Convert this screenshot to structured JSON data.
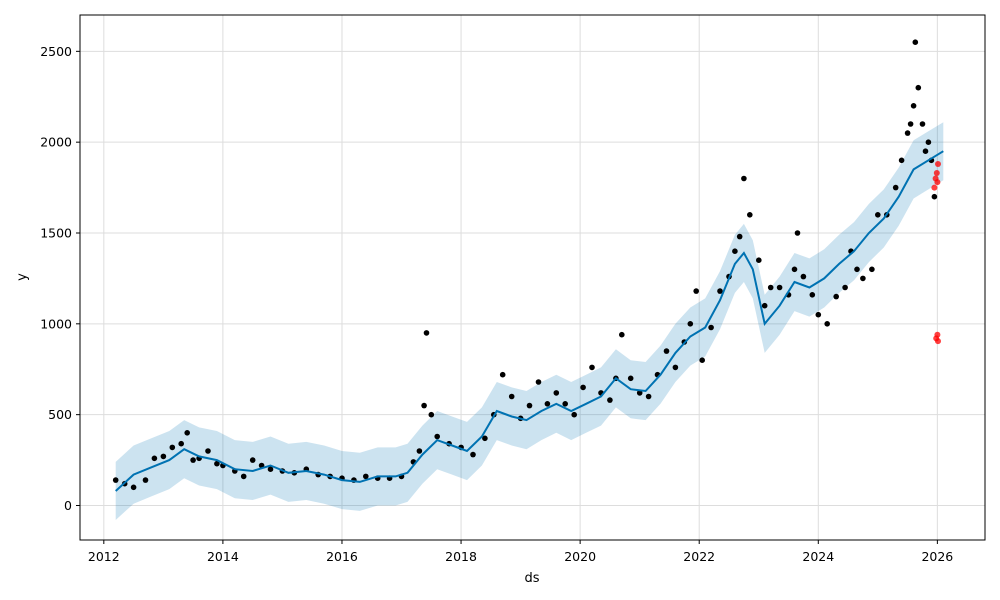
{
  "chart_data": {
    "type": "line",
    "xlabel": "ds",
    "ylabel": "y",
    "xlim": [
      2011.6,
      2026.8
    ],
    "ylim": [
      -190,
      2700
    ],
    "grid": true,
    "x_ticks": [
      "2012",
      "2014",
      "2016",
      "2018",
      "2020",
      "2022",
      "2024",
      "2026"
    ],
    "y_ticks": [
      "0",
      "500",
      "1000",
      "1500",
      "2000",
      "2500"
    ],
    "colors": {
      "forecast": "#0072B2",
      "interval": "#0072B2",
      "observed": "#000000",
      "test": "#ff0000",
      "grid": "#dddddd"
    },
    "series": [
      {
        "role": "forecast_line",
        "x": [
          2012.2,
          2012.5,
          2012.8,
          2013.1,
          2013.35,
          2013.6,
          2013.9,
          2014.2,
          2014.5,
          2014.8,
          2015.1,
          2015.4,
          2015.7,
          2016.0,
          2016.3,
          2016.6,
          2016.9,
          2017.1,
          2017.35,
          2017.6,
          2017.85,
          2018.1,
          2018.35,
          2018.6,
          2018.85,
          2019.1,
          2019.35,
          2019.6,
          2019.85,
          2020.1,
          2020.35,
          2020.6,
          2020.85,
          2021.1,
          2021.35,
          2021.6,
          2021.85,
          2022.1,
          2022.35,
          2022.6,
          2022.75,
          2022.9,
          2023.1,
          2023.35,
          2023.6,
          2023.85,
          2024.1,
          2024.35,
          2024.6,
          2024.85,
          2025.1,
          2025.35,
          2025.6,
          2025.85,
          2026.1
        ],
        "y": [
          80,
          170,
          210,
          250,
          310,
          270,
          250,
          200,
          190,
          220,
          180,
          190,
          170,
          140,
          130,
          160,
          160,
          180,
          280,
          360,
          330,
          300,
          380,
          520,
          490,
          470,
          520,
          560,
          520,
          560,
          600,
          700,
          640,
          630,
          720,
          840,
          930,
          980,
          1130,
          1330,
          1390,
          1300,
          1000,
          1100,
          1230,
          1200,
          1250,
          1330,
          1400,
          1500,
          1580,
          1700,
          1850,
          1900,
          1950
        ]
      },
      {
        "role": "uncertainty_interval",
        "x": [
          2012.2,
          2012.5,
          2012.8,
          2013.1,
          2013.35,
          2013.6,
          2013.9,
          2014.2,
          2014.5,
          2014.8,
          2015.1,
          2015.4,
          2015.7,
          2016.0,
          2016.3,
          2016.6,
          2016.9,
          2017.1,
          2017.35,
          2017.6,
          2017.85,
          2018.1,
          2018.35,
          2018.6,
          2018.85,
          2019.1,
          2019.35,
          2019.6,
          2019.85,
          2020.1,
          2020.35,
          2020.6,
          2020.85,
          2021.1,
          2021.35,
          2021.6,
          2021.85,
          2022.1,
          2022.35,
          2022.6,
          2022.75,
          2022.9,
          2023.1,
          2023.35,
          2023.6,
          2023.85,
          2024.1,
          2024.35,
          2024.6,
          2024.85,
          2025.1,
          2025.35,
          2025.6,
          2025.85,
          2026.1
        ],
        "lower": [
          -80,
          10,
          50,
          90,
          150,
          110,
          90,
          40,
          30,
          60,
          20,
          30,
          10,
          -20,
          -30,
          0,
          0,
          20,
          120,
          200,
          170,
          140,
          220,
          360,
          330,
          310,
          360,
          400,
          360,
          400,
          440,
          540,
          480,
          470,
          560,
          680,
          770,
          820,
          970,
          1170,
          1230,
          1140,
          840,
          940,
          1070,
          1040,
          1090,
          1170,
          1240,
          1340,
          1420,
          1540,
          1690,
          1740,
          1790
        ],
        "upper": [
          240,
          330,
          370,
          410,
          470,
          430,
          410,
          360,
          350,
          380,
          340,
          350,
          330,
          300,
          290,
          320,
          320,
          340,
          440,
          520,
          490,
          460,
          540,
          680,
          650,
          630,
          680,
          720,
          680,
          720,
          760,
          860,
          800,
          790,
          880,
          1000,
          1090,
          1140,
          1290,
          1490,
          1550,
          1460,
          1160,
          1260,
          1390,
          1360,
          1410,
          1490,
          1560,
          1660,
          1740,
          1860,
          2010,
          2060,
          2110
        ]
      },
      {
        "role": "observed_points",
        "x": [
          2012.2,
          2012.35,
          2012.5,
          2012.7,
          2012.85,
          2013.0,
          2013.15,
          2013.3,
          2013.4,
          2013.5,
          2013.6,
          2013.75,
          2013.9,
          2014.0,
          2014.2,
          2014.35,
          2014.5,
          2014.65,
          2014.8,
          2015.0,
          2015.2,
          2015.4,
          2015.6,
          2015.8,
          2016.0,
          2016.2,
          2016.4,
          2016.6,
          2016.8,
          2017.0,
          2017.2,
          2017.3,
          2017.38,
          2017.42,
          2017.5,
          2017.6,
          2017.8,
          2018.0,
          2018.2,
          2018.4,
          2018.55,
          2018.7,
          2018.85,
          2019.0,
          2019.15,
          2019.3,
          2019.45,
          2019.6,
          2019.75,
          2019.9,
          2020.05,
          2020.2,
          2020.35,
          2020.5,
          2020.6,
          2020.7,
          2020.85,
          2021.0,
          2021.15,
          2021.3,
          2021.45,
          2021.6,
          2021.75,
          2021.85,
          2021.95,
          2022.05,
          2022.2,
          2022.35,
          2022.5,
          2022.6,
          2022.68,
          2022.75,
          2022.85,
          2023.0,
          2023.1,
          2023.2,
          2023.35,
          2023.5,
          2023.6,
          2023.65,
          2023.75,
          2023.9,
          2024.0,
          2024.15,
          2024.3,
          2024.45,
          2024.55,
          2024.65,
          2024.75,
          2024.9,
          2025.0,
          2025.15,
          2025.3,
          2025.4,
          2025.5,
          2025.55,
          2025.6,
          2025.63,
          2025.68,
          2025.75,
          2025.8,
          2025.85,
          2025.9,
          2025.95
        ],
        "y": [
          140,
          120,
          100,
          140,
          260,
          270,
          320,
          340,
          400,
          250,
          260,
          300,
          230,
          220,
          190,
          160,
          250,
          220,
          200,
          190,
          180,
          200,
          170,
          160,
          150,
          140,
          160,
          150,
          150,
          160,
          240,
          300,
          550,
          950,
          500,
          380,
          340,
          320,
          280,
          370,
          500,
          720,
          600,
          480,
          550,
          680,
          560,
          620,
          560,
          500,
          650,
          760,
          620,
          580,
          700,
          940,
          700,
          620,
          600,
          720,
          850,
          760,
          900,
          1000,
          1180,
          800,
          980,
          1180,
          1260,
          1400,
          1480,
          1800,
          1600,
          1350,
          1100,
          1200,
          1200,
          1160,
          1300,
          1500,
          1260,
          1160,
          1050,
          1000,
          1150,
          1200,
          1400,
          1300,
          1250,
          1300,
          1600,
          1600,
          1750,
          1900,
          2050,
          2100,
          2200,
          2550,
          2300,
          2100,
          1950,
          2000,
          1900,
          1700
        ]
      },
      {
        "role": "test_points",
        "x": [
          2025.95,
          2025.97,
          2025.99,
          2026.0,
          2026.01,
          2025.98,
          2026.0,
          2026.01
        ],
        "y": [
          1750,
          1800,
          1830,
          1780,
          1880,
          920,
          940,
          905
        ]
      }
    ]
  }
}
